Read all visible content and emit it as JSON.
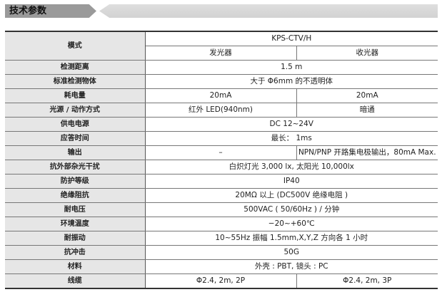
{
  "section_title": "技术参数",
  "header": {
    "label": "模式",
    "model": "KPS-CTV/H",
    "emitter": "发光器",
    "receiver": "收光器"
  },
  "rows": [
    {
      "label": "检测距离",
      "value": "1.5 m"
    },
    {
      "label": "标准检测物体",
      "value": "大于 Φ6mm 的不透明体"
    },
    {
      "label": "耗电量",
      "emitter": "20mA",
      "receiver": "20mA"
    },
    {
      "label": "光源 / 动作方式",
      "emitter": "红外 LED(940nm)",
      "receiver": "暗通"
    },
    {
      "label": "供电电源",
      "value": "DC 12~24V"
    },
    {
      "label": "应答时间",
      "value": "最长： 1ms"
    },
    {
      "label": "输出",
      "emitter": "–",
      "receiver": "NPN/PNP 开路集电极输出，80mA Max."
    },
    {
      "label": "抗外部杂光干扰",
      "value": "白炽灯光 3,000 lx, 太阳光 10,000lx"
    },
    {
      "label": "防护等级",
      "value": "IP40"
    },
    {
      "label": "绝缘阻抗",
      "value": "20MΩ 以上 (DC500V 绝缘电阻 )"
    },
    {
      "label": "耐电压",
      "value": "500VAC ( 50/60Hz ) / 分钟"
    },
    {
      "label": "环境温度",
      "value": "−20~+60℃"
    },
    {
      "label": "耐振动",
      "value": "10~55Hz 振幅 1.5mm,X,Y,Z 方向各 1 小时"
    },
    {
      "label": "抗冲击",
      "value": "50G"
    },
    {
      "label": "材料",
      "value": "外壳 : PBT, 镜头 : PC"
    },
    {
      "label": "线缆",
      "emitter": "Φ2.4, 2m, 2P",
      "receiver": "Φ2.4, 2m, 3P"
    }
  ]
}
